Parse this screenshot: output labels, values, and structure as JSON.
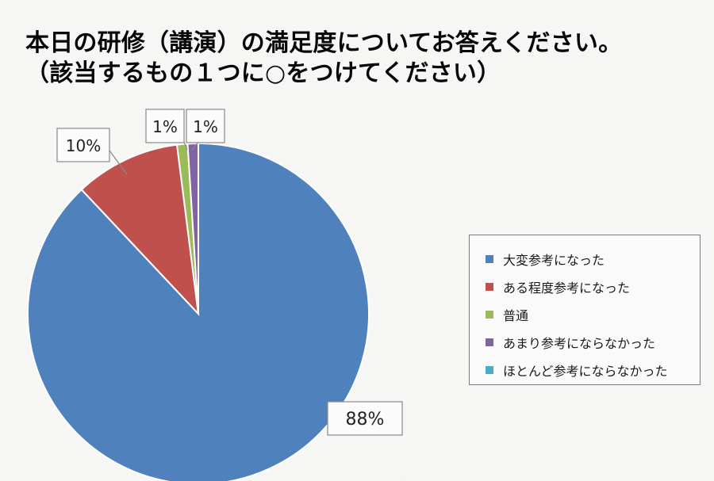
{
  "title": {
    "line1": "本日の研修（講演）の満足度についてお答えください。",
    "line2": "（該当するもの１つに○をつけてください）"
  },
  "chart_data": {
    "type": "pie",
    "categories": [
      "大変参考になった",
      "ある程度参考になった",
      "普通",
      "あまり参考にならなかった",
      "ほとんど参考にならなかった"
    ],
    "values": [
      88,
      10,
      1,
      1,
      0
    ],
    "data_labels": [
      "88%",
      "10%",
      "1%",
      "1%",
      ""
    ],
    "colors": [
      "#4f81bd",
      "#c0504d",
      "#9bbb59",
      "#8064a2",
      "#4bacc6"
    ],
    "legend_position": "right"
  }
}
